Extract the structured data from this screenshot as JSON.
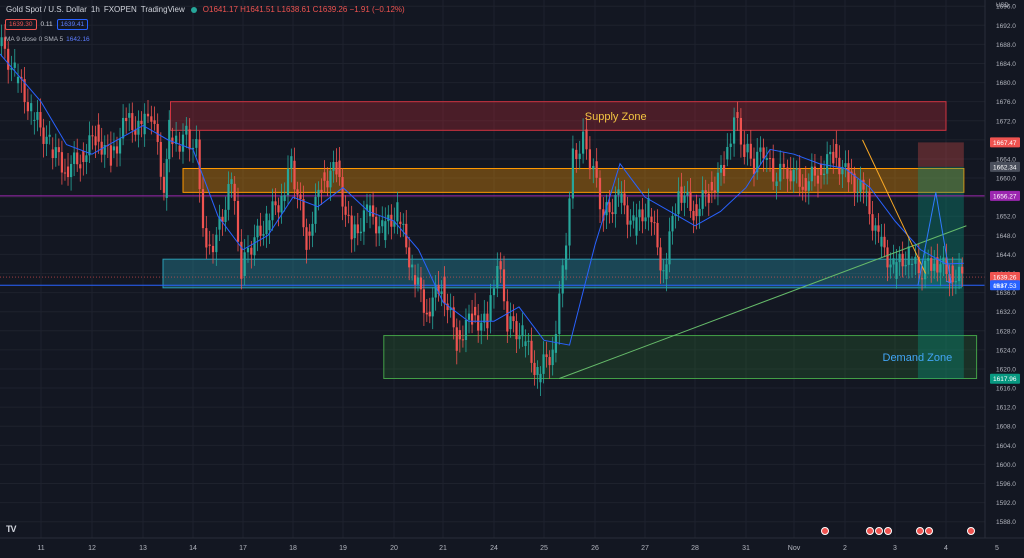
{
  "header": {
    "title": "Gold Spot / U.S. Dollar",
    "interval": "1h",
    "broker": "FXOPEN",
    "source": "TradingView",
    "ohlc": "O1641.17  H1641.51  L1638.61  C1639.26  −1.91 (−0.12%)",
    "sell_price": "1639.30",
    "spread": "0.11",
    "buy_price": "1639.41"
  },
  "indicator": {
    "label": "MA 9 close 0 SMA 5",
    "value": "1642.16"
  },
  "currency": "USD",
  "logo_text": "TV",
  "colors": {
    "background": "#131722",
    "grid": "#1e222d",
    "up": "#26a69a",
    "down": "#ef5350",
    "ma": "#2962ff",
    "supply_zone": "#b22833",
    "demand_zone": "#2e7d32",
    "resistance_box": "#ff9800",
    "support_box": "#2a9db5"
  },
  "chart_data": {
    "type": "line",
    "title": "Gold Spot / U.S. Dollar · 1h · FXOPEN",
    "x_ticks": [
      "11",
      "12",
      "13",
      "14",
      "17",
      "18",
      "19",
      "20",
      "21",
      "24",
      "25",
      "26",
      "27",
      "28",
      "31",
      "Nov",
      "2",
      "3",
      "4",
      "5"
    ],
    "y_ticks": [
      1588,
      1592,
      1596,
      1600,
      1604,
      1608,
      1612,
      1616,
      1620,
      1624,
      1628,
      1632,
      1636,
      1640,
      1644,
      1648,
      1652,
      1656,
      1660,
      1664,
      1668,
      1672,
      1676,
      1680,
      1684,
      1688,
      1692,
      1696
    ],
    "ylim": [
      1585,
      1700
    ],
    "series": [
      {
        "name": "",
        "x": [
          10.5,
          10.7,
          10.9,
          11.2,
          11.5,
          11.8,
          12.1,
          12.4,
          12.7,
          13.0,
          13.2,
          13.45,
          13.55,
          13.7,
          13.9,
          14.1,
          14.3,
          14.5,
          14.8,
          15.0,
          15.2,
          15.5,
          15.8,
          16.0,
          16.3,
          16.6,
          16.9,
          17.2,
          17.5,
          17.8,
          18.1,
          18.4,
          18.7,
          19.0,
          19.3,
          19.6,
          19.9,
          20.1,
          20.3,
          20.6,
          20.9,
          21.2,
          21.4,
          21.6,
          21.8,
          22.0,
          22.2,
          22.5,
          22.8,
          23.1,
          23.4,
          23.7,
          24.0,
          24.3,
          24.6,
          24.8,
          25.0,
          25.2,
          25.4,
          25.6,
          25.9,
          26.2,
          26.5,
          26.8,
          27.1,
          27.4,
          27.7,
          28.0,
          28.3,
          28.5,
          28.8,
          29.1,
          29.35
        ],
        "values": [
          1689,
          1682,
          1674,
          1667,
          1662,
          1664,
          1669,
          1664,
          1672,
          1670,
          1674,
          1658,
          1670,
          1667,
          1669,
          1666,
          1644,
          1648,
          1659,
          1641,
          1646,
          1651,
          1656,
          1663,
          1647,
          1659,
          1662,
          1647,
          1653,
          1649,
          1653,
          1641,
          1632,
          1638,
          1626,
          1631,
          1629,
          1643,
          1630,
          1627,
          1619,
          1624,
          1640,
          1664,
          1668,
          1662,
          1652,
          1656,
          1650,
          1654,
          1640,
          1658,
          1653,
          1657,
          1662,
          1673,
          1666,
          1663,
          1666,
          1660,
          1662,
          1659,
          1661,
          1665,
          1660,
          1657,
          1647,
          1641,
          1644,
          1640,
          1643,
          1640,
          1639.26
        ]
      },
      {
        "name": "MA 9 close 0 SMA 5",
        "x": [
          10.5,
          11.0,
          11.5,
          12.0,
          12.5,
          13.0,
          13.5,
          14.0,
          14.5,
          15.0,
          15.5,
          16.0,
          16.5,
          17.0,
          17.5,
          18.0,
          18.5,
          19.0,
          19.5,
          20.0,
          20.5,
          21.0,
          21.5,
          22.0,
          22.5,
          23.0,
          23.5,
          24.0,
          24.5,
          25.0,
          25.5,
          26.0,
          26.5,
          27.0,
          27.5,
          28.0,
          28.5,
          29.0,
          29.35
        ],
        "values": [
          1686,
          1676,
          1667,
          1665,
          1668,
          1671,
          1668,
          1666,
          1652,
          1645,
          1648,
          1656,
          1654,
          1658,
          1653,
          1651,
          1645,
          1634,
          1630,
          1630,
          1633,
          1626,
          1625,
          1646,
          1663,
          1656,
          1653,
          1650,
          1653,
          1658,
          1666,
          1665,
          1663,
          1662,
          1658,
          1651,
          1645,
          1642,
          1642.16
        ]
      }
    ],
    "zones": [
      {
        "label": "Supply Zone",
        "x": [
          13.55,
          29.0
        ],
        "y": [
          1670,
          1676
        ]
      },
      {
        "label": "",
        "x": [
          13.8,
          29.35
        ],
        "y": [
          1657,
          1662
        ]
      },
      {
        "label": "",
        "x": [
          13.4,
          29.3
        ],
        "y": [
          1637,
          1643
        ]
      },
      {
        "label": "Demand Zone",
        "x": [
          17.8,
          29.6
        ],
        "y": [
          1618,
          1627
        ]
      }
    ],
    "trendlines": [
      {
        "name": "rising support",
        "points": [
          [
            21.3,
            1618
          ],
          [
            29.4,
            1650
          ]
        ]
      },
      {
        "name": "falling resistance",
        "points": [
          [
            27.35,
            1668
          ],
          [
            28.6,
            1640
          ]
        ]
      },
      {
        "name": "projected path",
        "points": [
          [
            28.45,
            1637.5
          ],
          [
            28.8,
            1657
          ],
          [
            29.1,
            1638
          ]
        ]
      }
    ],
    "price_labels": [
      {
        "value": "1667.47",
        "y": 1667.47,
        "color": "#ef5350"
      },
      {
        "value": "1662.34",
        "y": 1662.34,
        "color": "#4a4f5c"
      },
      {
        "value": "1656.27",
        "y": 1656.27,
        "color": "#9c27b0"
      },
      {
        "value": "1639.26",
        "y": 1639.26,
        "color": "#ef5350"
      },
      {
        "value": "1637.53",
        "y": 1637.53,
        "color": "#2962ff"
      },
      {
        "value": "1617.96",
        "y": 1617.96,
        "color": "#089981"
      }
    ],
    "countdown": "49:47",
    "grid": true
  }
}
